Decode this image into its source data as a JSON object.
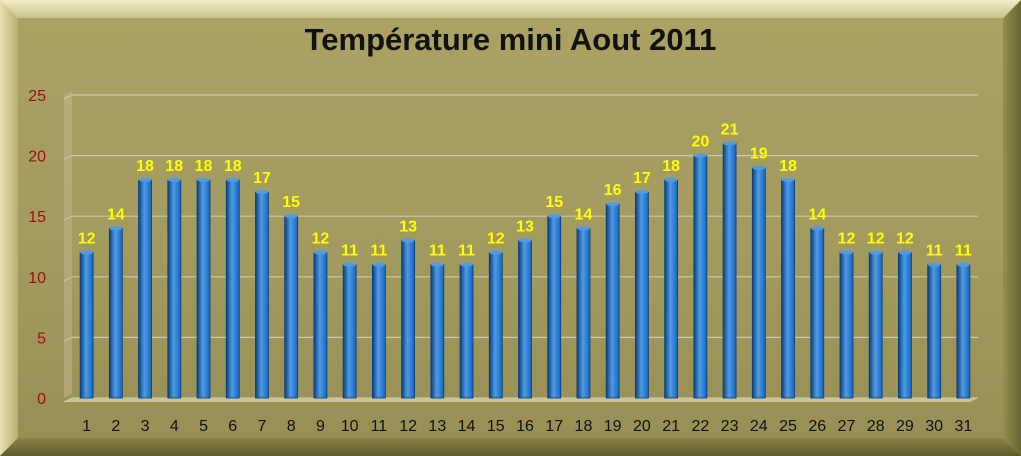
{
  "chart_data": {
    "type": "bar",
    "title": "Température mini Aout 2011",
    "xlabel": "",
    "ylabel": "",
    "categories": [
      "1",
      "2",
      "3",
      "4",
      "5",
      "6",
      "7",
      "8",
      "9",
      "10",
      "11",
      "12",
      "13",
      "14",
      "15",
      "16",
      "17",
      "18",
      "19",
      "20",
      "21",
      "22",
      "23",
      "24",
      "25",
      "26",
      "27",
      "28",
      "29",
      "30",
      "31"
    ],
    "values": [
      12,
      14,
      18,
      18,
      18,
      18,
      17,
      15,
      12,
      11,
      11,
      13,
      11,
      11,
      12,
      13,
      15,
      14,
      16,
      17,
      18,
      20,
      21,
      19,
      18,
      14,
      12,
      12,
      12,
      11,
      11
    ],
    "ylim": [
      0,
      25
    ],
    "yticks": [
      0,
      5,
      10,
      15,
      20,
      25
    ],
    "grid": true,
    "legend": "none",
    "colors": {
      "bar": "#1565c0",
      "bar_dark": "#0b3f7a",
      "bar_light": "#4f9be6",
      "data_label": "#ffff00",
      "y_tick_label": "#a01010",
      "x_tick_label": "#111111",
      "grid": "#c9c7ae"
    }
  }
}
